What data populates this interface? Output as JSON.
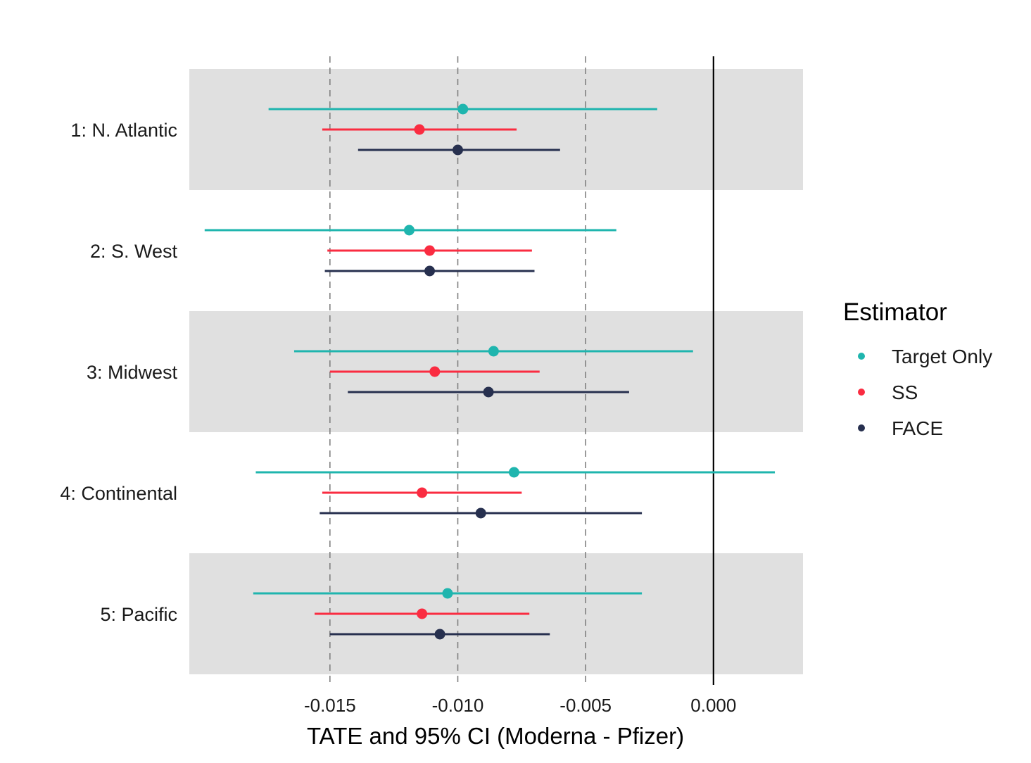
{
  "chart_data": {
    "type": "forest",
    "xlabel": "TATE and 95% CI (Moderna - Pfizer)",
    "xlim": [
      -0.0205,
      0.0035
    ],
    "x_ticks": [
      {
        "value": -0.015,
        "label": "-0.015"
      },
      {
        "value": -0.01,
        "label": "-0.010"
      },
      {
        "value": -0.005,
        "label": "-0.005"
      },
      {
        "value": 0.0,
        "label": "0.000"
      }
    ],
    "dashed_reference_lines": [
      -0.015,
      -0.01,
      -0.005
    ],
    "solid_reference_line": 0.0,
    "legend": {
      "title": "Estimator",
      "placement": "right",
      "entries": [
        {
          "name": "Target Only",
          "color": "#1FB5AE"
        },
        {
          "name": "SS",
          "color": "#FA2C41"
        },
        {
          "name": "FACE",
          "color": "#27304F"
        }
      ]
    },
    "categories": [
      "1: N. Atlantic",
      "2: S. West",
      "3: Midwest",
      "4: Continental",
      "5: Pacific"
    ],
    "shaded_bands": [
      true,
      false,
      true,
      false,
      true
    ],
    "series": [
      {
        "name": "Target Only",
        "color": "#1FB5AE",
        "estimates": [
          -0.0098,
          -0.0119,
          -0.0086,
          -0.0078,
          -0.0104
        ],
        "ci_lower": [
          -0.0174,
          -0.0199,
          -0.0164,
          -0.0179,
          -0.018
        ],
        "ci_upper": [
          -0.0022,
          -0.0038,
          -0.0008,
          0.0024,
          -0.0028
        ]
      },
      {
        "name": "SS",
        "color": "#FA2C41",
        "estimates": [
          -0.0115,
          -0.0111,
          -0.0109,
          -0.0114,
          -0.0114
        ],
        "ci_lower": [
          -0.0153,
          -0.0151,
          -0.015,
          -0.0153,
          -0.0156
        ],
        "ci_upper": [
          -0.0077,
          -0.0071,
          -0.0068,
          -0.0075,
          -0.0072
        ]
      },
      {
        "name": "FACE",
        "color": "#27304F",
        "estimates": [
          -0.01,
          -0.0111,
          -0.0088,
          -0.0091,
          -0.0107
        ],
        "ci_lower": [
          -0.0139,
          -0.0152,
          -0.0143,
          -0.0154,
          -0.015
        ],
        "ci_upper": [
          -0.006,
          -0.007,
          -0.0033,
          -0.0028,
          -0.0064
        ]
      }
    ]
  }
}
